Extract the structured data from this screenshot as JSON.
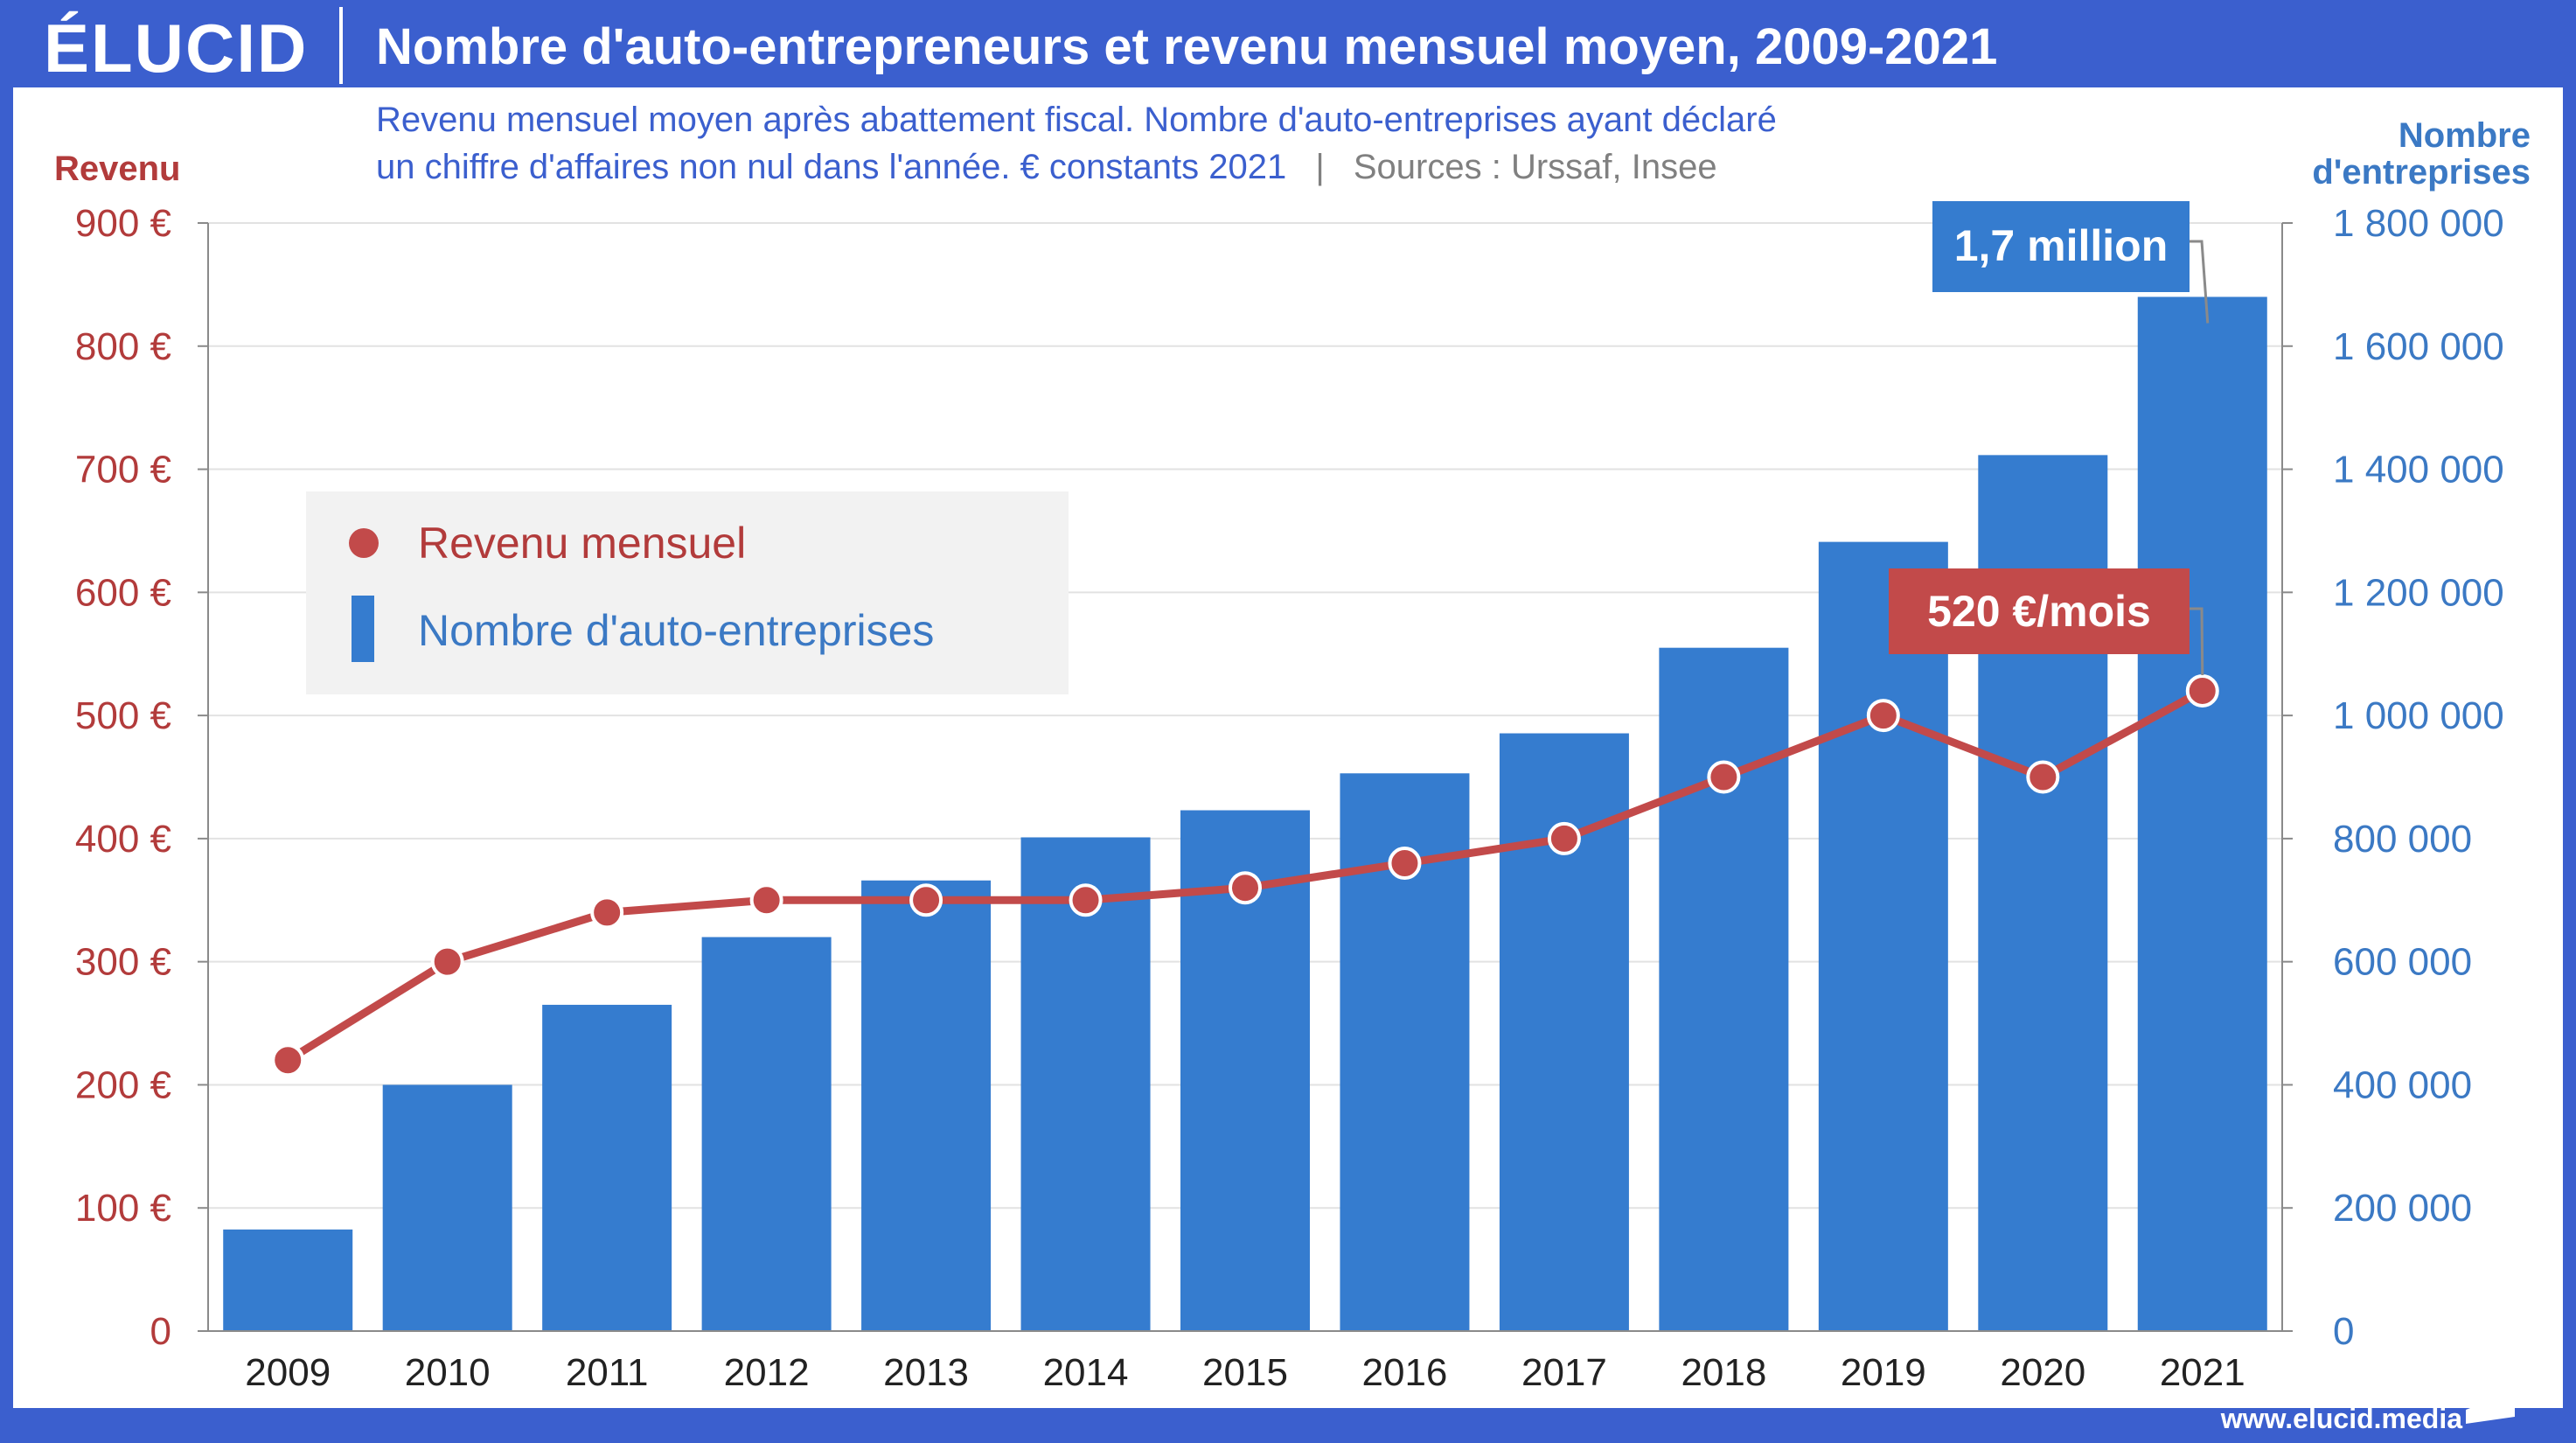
{
  "header": {
    "logo": "ÉLUCID",
    "title": "Nombre d'auto-entrepreneurs et revenu mensuel moyen, 2009-2021"
  },
  "subtitle": {
    "line1": "Revenu mensuel moyen après abattement fiscal. Nombre d'auto-entreprises ayant déclaré",
    "line2": "un chiffre d'affaires non nul dans l'année. € constants 2021",
    "separator": "|",
    "sources": "Sources : Urssaf, Insee"
  },
  "footer": {
    "url": "www.elucid.media"
  },
  "colors": {
    "brand": "#3b5fce",
    "bars": "#357ccf",
    "line": "#c24a4a",
    "revenue_text": "#b23b3b",
    "count_text": "#3b79c4",
    "subtitle_text": "#3b5fce",
    "sources_text": "#808080"
  },
  "chart_data": {
    "type": "bar+line",
    "categories": [
      "2009",
      "2010",
      "2011",
      "2012",
      "2013",
      "2014",
      "2015",
      "2016",
      "2017",
      "2018",
      "2019",
      "2020",
      "2021"
    ],
    "left_axis": {
      "label": "Revenu",
      "ylim": [
        0,
        900
      ],
      "ticks": [
        0,
        100,
        200,
        300,
        400,
        500,
        600,
        700,
        800,
        900
      ],
      "tick_labels": [
        "0",
        "100 €",
        "200 €",
        "300 €",
        "400 €",
        "500 €",
        "600 €",
        "700 €",
        "800 €",
        "900 €"
      ]
    },
    "right_axis": {
      "label_line1": "Nombre",
      "label_line2": "d'entreprises",
      "ylim": [
        0,
        1800000
      ],
      "ticks": [
        0,
        200000,
        400000,
        600000,
        800000,
        1000000,
        1200000,
        1400000,
        1600000,
        1800000
      ],
      "tick_labels": [
        "0",
        "200 000",
        "400 000",
        "600 000",
        "800 000",
        "1 000 000",
        "1 200 000",
        "1 400 000",
        "1 600 000",
        "1 800 000"
      ]
    },
    "series": [
      {
        "name": "Nombre d'auto-entreprises",
        "type": "bar",
        "axis": "right",
        "values": [
          165000,
          400000,
          530000,
          640000,
          732000,
          802000,
          846000,
          906000,
          971000,
          1110000,
          1282000,
          1423000,
          1680000
        ]
      },
      {
        "name": "Revenu mensuel",
        "type": "line",
        "axis": "left",
        "values": [
          220,
          300,
          340,
          350,
          350,
          350,
          360,
          380,
          400,
          450,
          500,
          450,
          520
        ]
      }
    ],
    "annotations": [
      {
        "text": "1,7 million",
        "series": "Nombre d'auto-entreprises",
        "category": "2021"
      },
      {
        "text": "520 €/mois",
        "series": "Revenu mensuel",
        "category": "2021"
      }
    ],
    "legend": {
      "placement": "top-left",
      "items": [
        {
          "label": "Revenu mensuel",
          "marker": "dot"
        },
        {
          "label": "Nombre d'auto-entreprises",
          "marker": "bar"
        }
      ]
    },
    "grid": true
  }
}
